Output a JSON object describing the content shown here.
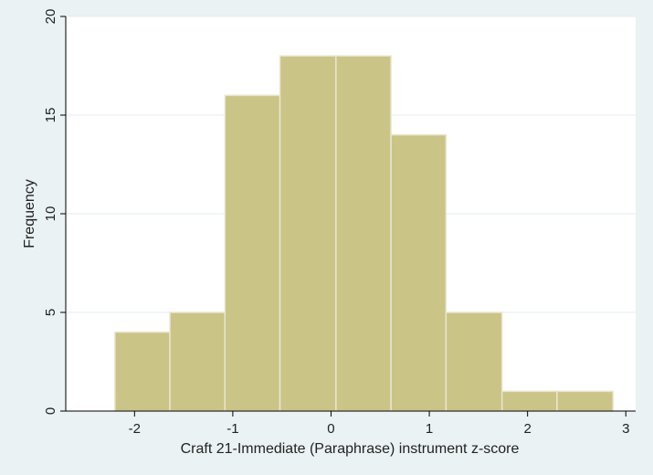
{
  "chart_data": {
    "type": "bar",
    "bins": [
      {
        "x0": -2.2,
        "x1": -1.64,
        "count": 4
      },
      {
        "x0": -1.64,
        "x1": -1.08,
        "count": 5
      },
      {
        "x0": -1.08,
        "x1": -0.52,
        "count": 16
      },
      {
        "x0": -0.52,
        "x1": 0.05,
        "count": 18
      },
      {
        "x0": 0.05,
        "x1": 0.61,
        "count": 18
      },
      {
        "x0": 0.61,
        "x1": 1.17,
        "count": 14
      },
      {
        "x0": 1.17,
        "x1": 1.74,
        "count": 5
      },
      {
        "x0": 1.74,
        "x1": 2.3,
        "count": 1
      },
      {
        "x0": 2.3,
        "x1": 2.87,
        "count": 1
      }
    ],
    "xlabel": "Craft 21-Immediate (Paraphrase) instrument z-score",
    "ylabel": "Frequency",
    "xticks": [
      -2,
      -1,
      0,
      1,
      2,
      3
    ],
    "yticks": [
      0,
      5,
      10,
      15,
      20
    ],
    "xlim": [
      -2.7,
      3.1
    ],
    "ylim": [
      0,
      20
    ],
    "grid": true,
    "colors": {
      "bar_fill": "#cbc487",
      "bar_stroke": "#e9e6cf",
      "background": "#eaf2f3",
      "plot_background": "#ffffff",
      "grid": "#e6eef0"
    }
  }
}
